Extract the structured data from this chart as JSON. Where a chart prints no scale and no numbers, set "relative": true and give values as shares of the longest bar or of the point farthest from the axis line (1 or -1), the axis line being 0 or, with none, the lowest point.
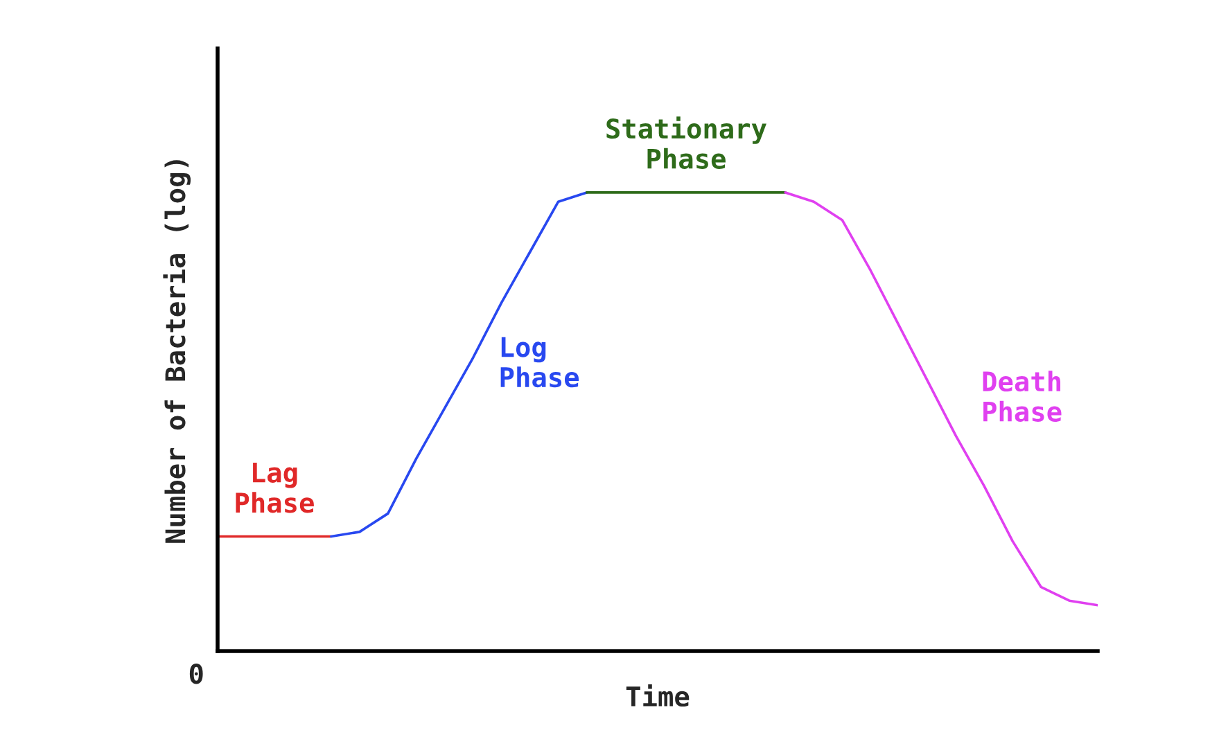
{
  "chart_data": {
    "type": "line",
    "relative": true,
    "xlabel": "Time",
    "ylabel": "Number of Bacteria (log)",
    "annotations": [
      "0"
    ],
    "categories": [
      null,
      null,
      null,
      null,
      null,
      null,
      null,
      null,
      null,
      null,
      null,
      null,
      null,
      null,
      null,
      null,
      null,
      null,
      null,
      null,
      null,
      null,
      null,
      null,
      null,
      null,
      null,
      null,
      null,
      null,
      null,
      null
    ],
    "series": [
      {
        "name": "Lag Phase",
        "color": "#e02828",
        "values": [
          0.25,
          0.25,
          0.25,
          0.25,
          0.25,
          null,
          null,
          null,
          null,
          null,
          null,
          null,
          null,
          null,
          null,
          null,
          null,
          null,
          null,
          null,
          null,
          null,
          null,
          null,
          null,
          null,
          null,
          null,
          null,
          null,
          null,
          null
        ]
      },
      {
        "name": "Log Phase",
        "color": "#2848f0",
        "values": [
          null,
          null,
          null,
          null,
          0.25,
          0.26,
          0.3,
          0.42,
          0.53,
          0.64,
          0.76,
          0.87,
          0.98,
          1,
          null,
          null,
          null,
          null,
          null,
          null,
          null,
          null,
          null,
          null,
          null,
          null,
          null,
          null,
          null,
          null,
          null,
          null
        ]
      },
      {
        "name": "Stationary Phase",
        "color": "#2e6b1a",
        "values": [
          null,
          null,
          null,
          null,
          null,
          null,
          null,
          null,
          null,
          null,
          null,
          null,
          null,
          1,
          1,
          1,
          1,
          1,
          1,
          1,
          1,
          null,
          null,
          null,
          null,
          null,
          null,
          null,
          null,
          null,
          null,
          null
        ]
      },
      {
        "name": "Death Phase",
        "color": "#e040f0",
        "values": [
          null,
          null,
          null,
          null,
          null,
          null,
          null,
          null,
          null,
          null,
          null,
          null,
          null,
          null,
          null,
          null,
          null,
          null,
          null,
          null,
          1,
          0.98,
          0.94,
          0.83,
          0.71,
          0.59,
          0.47,
          0.36,
          0.24,
          0.14,
          0.11,
          0.1
        ]
      }
    ],
    "tick_labels": false,
    "marker": "none",
    "line_style": "solid"
  }
}
